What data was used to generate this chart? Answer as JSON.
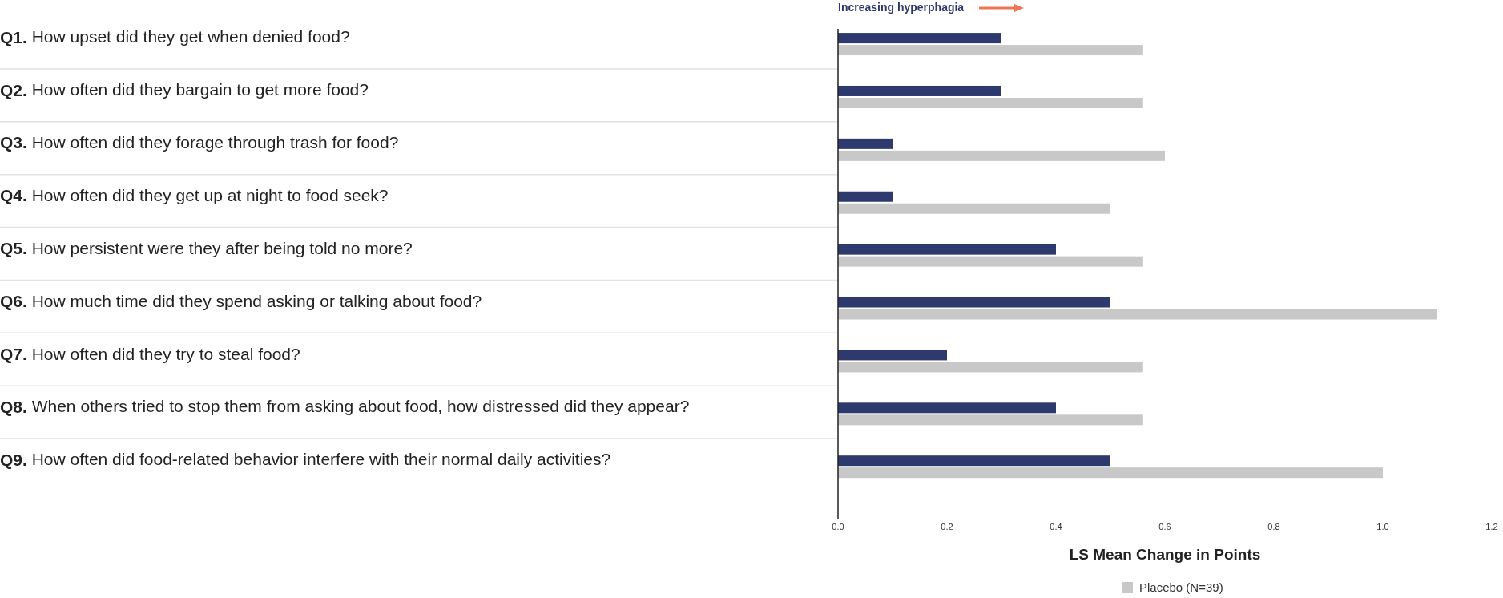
{
  "chart_data": {
    "type": "bar",
    "orientation": "horizontal",
    "xlabel": "LS Mean Change in Points",
    "annotations": [
      "Increasing hyperphagia"
    ],
    "categories": [
      "Q1. How upset did they get when denied food?",
      "Q2. How often did they bargain to get more food?",
      "Q3. How often did they forage through trash for food?",
      "Q4. How often did they get up at night to food seek?",
      "Q5. How persistent were they after being told no more?",
      "Q6. How much time did they spend asking or talking about food?",
      "Q7. How often did they try to steal food?",
      "Q8. When others tried to stop them from asking about food, how distressed did they appear?",
      "Q9. How often did food-related behavior interfere with their normal daily activities?"
    ],
    "series": [
      {
        "color": "#2e3a6e",
        "values": [
          0.3,
          0.3,
          0.1,
          0.1,
          0.4,
          0.5,
          0.2,
          0.4,
          0.5
        ]
      },
      {
        "name": "Placebo (N=39)",
        "color": "#c8c8c8",
        "values": [
          0.56,
          0.56,
          0.6,
          0.5,
          0.56,
          1.1,
          0.56,
          0.56,
          1.0
        ]
      }
    ],
    "xlim": [
      0,
      1.2
    ],
    "xticks": [
      {
        "value": 0,
        "label": "0.0"
      },
      {
        "value": 0.2,
        "label": "0.2"
      },
      {
        "value": 0.4,
        "label": "0.4"
      },
      {
        "value": 0.6,
        "label": "0.6"
      },
      {
        "value": 0.8,
        "label": "0.8"
      },
      {
        "value": 1,
        "label": "1.0"
      },
      {
        "value": 1.2,
        "label": "1.2"
      }
    ],
    "grid": false,
    "legend": "bottom"
  }
}
